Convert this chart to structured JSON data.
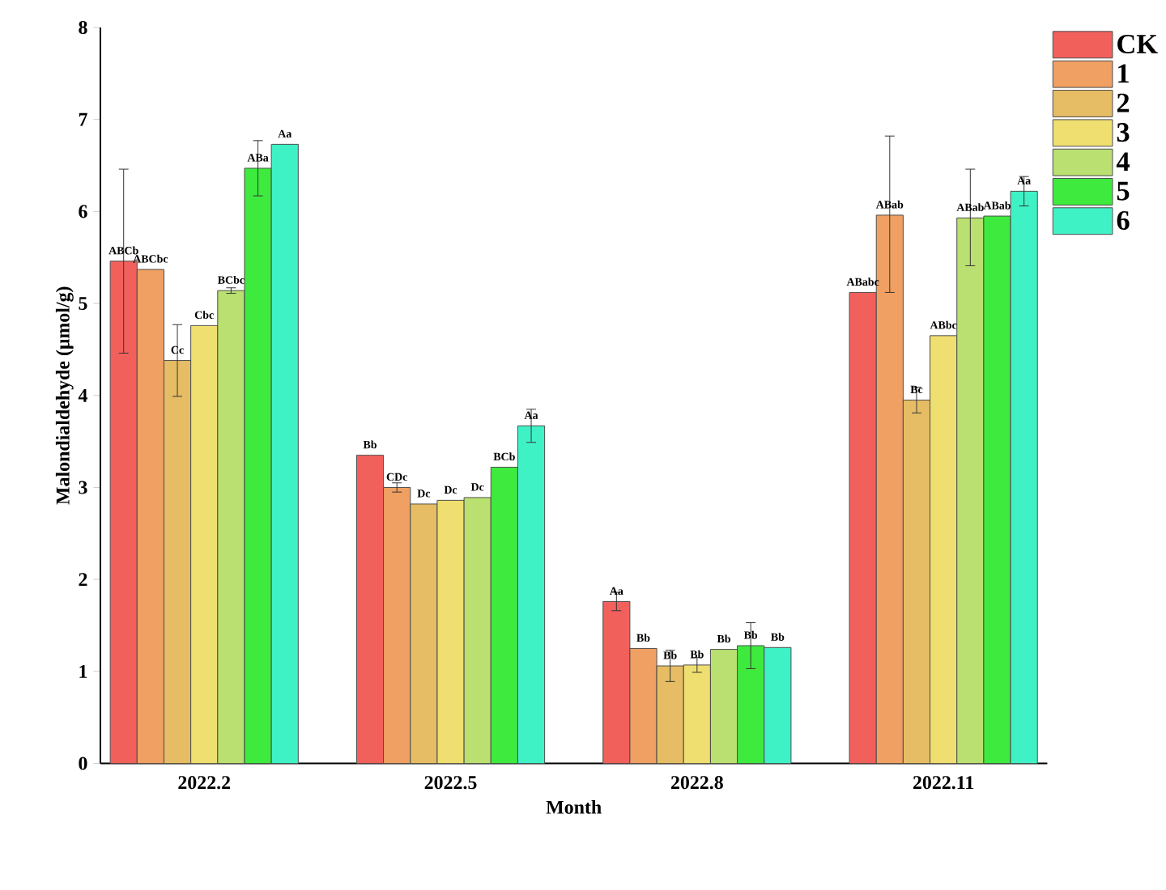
{
  "chart_data": {
    "type": "bar",
    "xlabel": "Month",
    "ylabel": "Malondialdehyde (μmol/g)",
    "categories": [
      "2022.2",
      "2022.5",
      "2022.8",
      "2022.11"
    ],
    "ylim": [
      0,
      8
    ],
    "yticks": [
      0,
      1,
      2,
      3,
      4,
      5,
      6,
      7,
      8
    ],
    "legend": "top right",
    "series": [
      {
        "name": "CK",
        "color": "#f2605c",
        "values": [
          5.46,
          3.35,
          1.76,
          5.12
        ],
        "errors": [
          1.0,
          null,
          0.1,
          null
        ],
        "value_labels": [
          "ABCb",
          "Bb",
          "Aa",
          "ABabc"
        ]
      },
      {
        "name": "1",
        "color": "#efa062",
        "values": [
          5.37,
          3.0,
          1.25,
          5.96
        ],
        "errors": [
          null,
          0.05,
          null,
          [
            5.12,
            6.82
          ]
        ],
        "value_labels": [
          "ABCbc",
          "CDc",
          "Bb",
          "ABab"
        ]
      },
      {
        "name": "2",
        "color": "#e6bd64",
        "values": [
          4.38,
          2.82,
          1.06,
          3.95
        ],
        "errors": [
          0.39,
          null,
          0.17,
          0.14
        ],
        "value_labels": [
          "Cc",
          "Dc",
          "Bb",
          "Bc"
        ]
      },
      {
        "name": "3",
        "color": "#efdf70",
        "values": [
          4.76,
          2.86,
          1.07,
          4.65
        ],
        "errors": [
          null,
          null,
          0.08,
          null
        ],
        "value_labels": [
          "Cbc",
          "Dc",
          "Bb",
          "ABbc"
        ]
      },
      {
        "name": "4",
        "color": "#b9e070",
        "values": [
          5.14,
          2.89,
          1.24,
          5.93
        ],
        "errors": [
          0.03,
          null,
          null,
          [
            5.41,
            6.46
          ]
        ],
        "value_labels": [
          "BCbc",
          "Dc",
          "Bb",
          "ABab"
        ]
      },
      {
        "name": "5",
        "color": "#3fea3f",
        "values": [
          6.47,
          3.22,
          1.28,
          5.95
        ],
        "errors": [
          0.3,
          null,
          0.25,
          null
        ],
        "value_labels": [
          "ABa",
          "BCb",
          "Bb",
          "ABab"
        ]
      },
      {
        "name": "6",
        "color": "#3ff2c6",
        "values": [
          6.73,
          3.67,
          1.26,
          6.22
        ],
        "errors": [
          null,
          0.18,
          null,
          0.16
        ],
        "value_labels": [
          "Aa",
          "Aa",
          "Bb",
          "Aa"
        ]
      }
    ]
  }
}
